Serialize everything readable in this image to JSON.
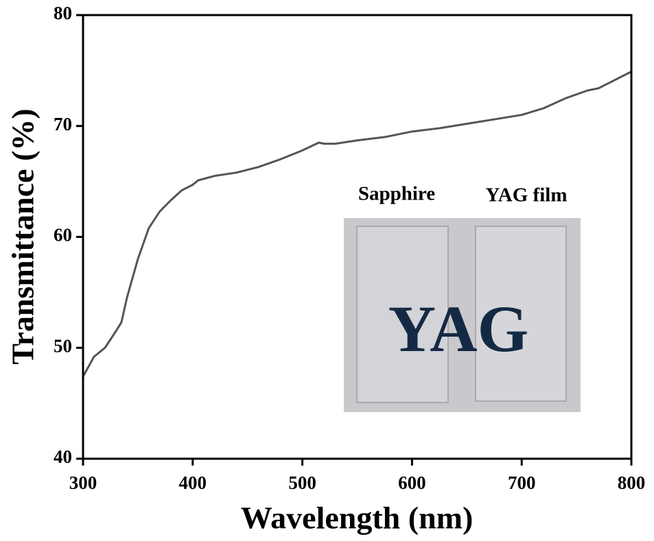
{
  "chart_data": {
    "type": "line",
    "xlabel": "Wavelength (nm)",
    "ylabel": "Transmittance (%)",
    "x": [
      300,
      310,
      320,
      330,
      335,
      340,
      350,
      360,
      370,
      380,
      390,
      400,
      405,
      420,
      440,
      460,
      480,
      500,
      515,
      520,
      530,
      550,
      575,
      600,
      625,
      650,
      675,
      700,
      720,
      740,
      760,
      770,
      780,
      800
    ],
    "series": [
      {
        "color": "#555555",
        "values": [
          47.4,
          49.2,
          50.0,
          51.5,
          52.3,
          54.5,
          58.0,
          60.8,
          62.3,
          63.3,
          64.2,
          64.7,
          65.1,
          65.5,
          65.8,
          66.3,
          67.0,
          67.8,
          68.5,
          68.4,
          68.4,
          68.7,
          69.0,
          69.5,
          69.8,
          70.2,
          70.6,
          71.0,
          71.6,
          72.5,
          73.2,
          73.4,
          73.9,
          74.9
        ]
      }
    ],
    "xlim": [
      300,
      800
    ],
    "xticks": [
      300,
      400,
      500,
      600,
      700,
      800
    ],
    "ylim": [
      40,
      80
    ],
    "yticks": [
      40,
      50,
      60,
      70,
      80
    ],
    "annotations": [
      "Sapphire",
      "YAG film",
      "YAG"
    ]
  }
}
